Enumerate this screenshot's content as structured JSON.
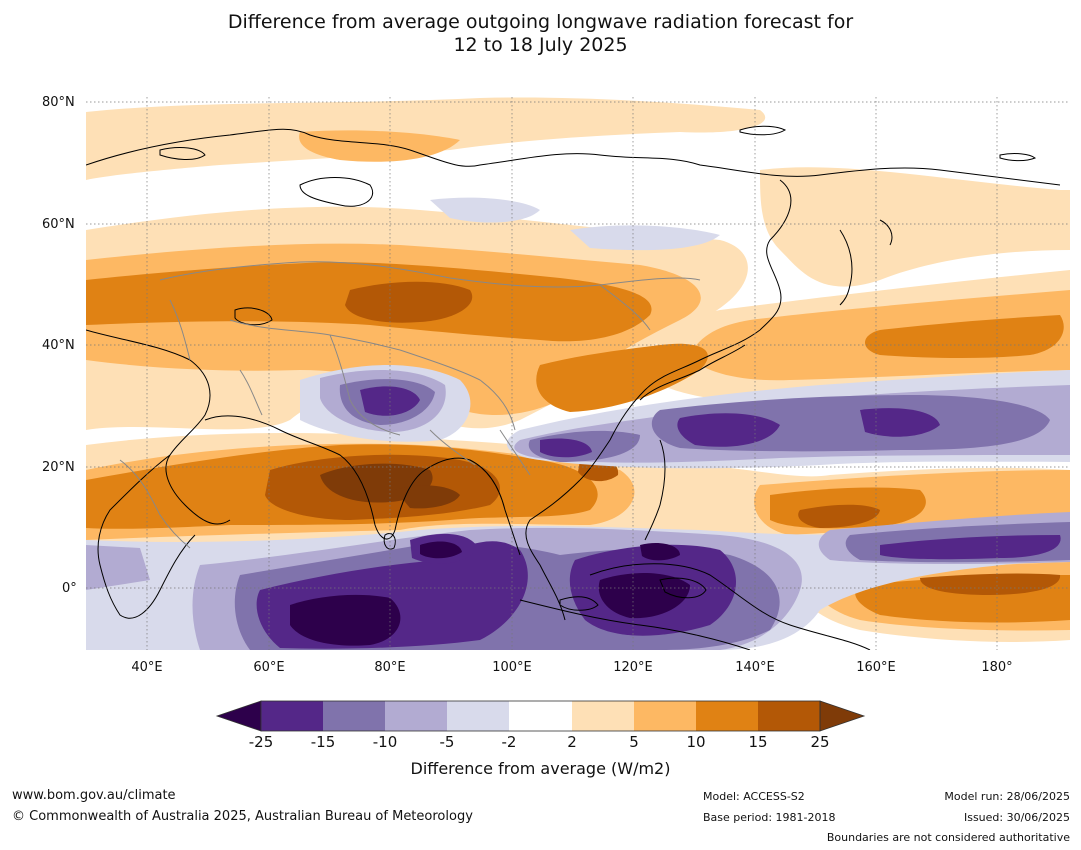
{
  "title_line1": "Difference from average outgoing longwave radiation forecast for",
  "title_line2": "12 to 18 July 2025",
  "map": {
    "lat_labels": [
      "80°N",
      "60°N",
      "40°N",
      "20°N",
      "0°"
    ],
    "lon_labels": [
      "40°E",
      "60°E",
      "80°E",
      "100°E",
      "120°E",
      "140°E",
      "160°E",
      "180°"
    ],
    "region": {
      "lon_min": 30,
      "lon_max": 192,
      "lat_min": -10,
      "lat_max": 81
    }
  },
  "colorbar": {
    "ticks": [
      "-25",
      "-15",
      "-10",
      "-5",
      "-2",
      "2",
      "5",
      "10",
      "15",
      "25"
    ],
    "label": "Difference from average (W/m2)",
    "colors": {
      "lt_-25": "#2d004b",
      "-25_-15": "#542788",
      "-15_-10": "#8073ac",
      "-10_-5": "#b2abd2",
      "-5_-2": "#d8daeb",
      "-2_2": "#ffffff",
      "2_5": "#fee0b6",
      "5_10": "#fdb863",
      "10_15": "#e08214",
      "15_25": "#b35806",
      "gt_25": "#7f3b08"
    }
  },
  "footer": {
    "url": "www.bom.gov.au/climate",
    "copyright": "© Commonwealth of Australia 2025, Australian Bureau of Meteorology",
    "model": "Model: ACCESS-S2",
    "base_period": "Base period: 1981-2018",
    "model_run": "Model run: 28/06/2025",
    "issued": "Issued: 30/06/2025",
    "disclaimer": "Boundaries are not considered authoritative"
  }
}
